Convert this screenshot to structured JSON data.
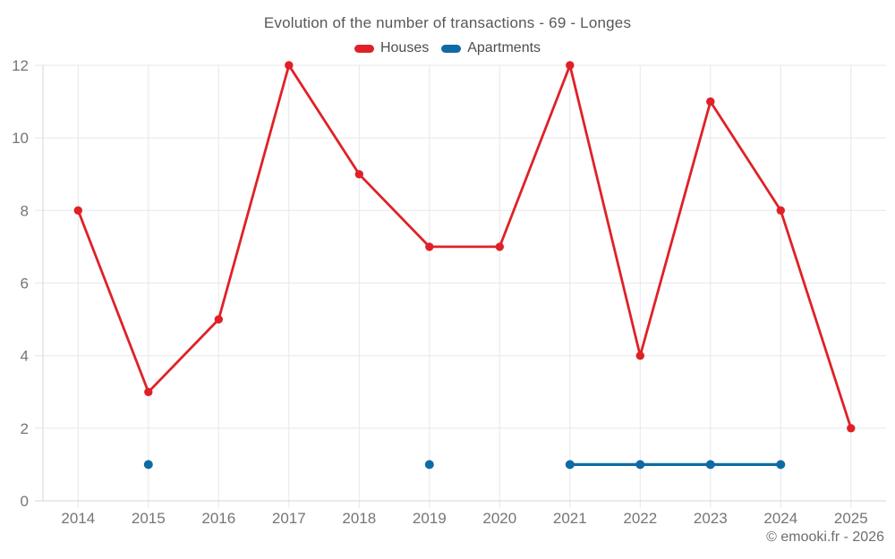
{
  "header": {
    "title": "Evolution of the number of transactions - 69 - Longes"
  },
  "legend": [
    {
      "label": "Houses",
      "color": "#df2127"
    },
    {
      "label": "Apartments",
      "color": "#0f6ba3"
    }
  ],
  "footer": {
    "text": "© emooki.fr - 2026"
  },
  "style": {
    "background": "#ffffff",
    "grid_color": "#e7e7e7",
    "axis_color": "#d6d6d6",
    "tick_color": "#757575",
    "title_color": "#575757",
    "legend_text_color": "#4d4d4d",
    "footer_color": "#6d6d6d"
  },
  "chart_data": {
    "type": "line",
    "title": "Evolution of the number of transactions - 69 - Longes",
    "xlabel": "",
    "ylabel": "",
    "categories": [
      "2014",
      "2015",
      "2016",
      "2017",
      "2018",
      "2019",
      "2020",
      "2021",
      "2022",
      "2023",
      "2024",
      "2025"
    ],
    "series": [
      {
        "name": "Houses",
        "color": "#df2127",
        "line_width": 2.8,
        "point_radius": 4.7,
        "values": [
          8,
          3,
          5,
          12,
          9,
          7,
          7,
          12,
          4,
          11,
          8,
          2
        ]
      },
      {
        "name": "Apartments",
        "color": "#0f6ba3",
        "line_width": 3.2,
        "point_radius": 5,
        "values": [
          null,
          1,
          null,
          null,
          null,
          1,
          null,
          1,
          1,
          1,
          1,
          null
        ]
      }
    ],
    "ylim": [
      0,
      12
    ],
    "yticks": [
      0,
      2,
      4,
      6,
      8,
      10,
      12
    ],
    "grid": true,
    "legend_position": "top"
  }
}
